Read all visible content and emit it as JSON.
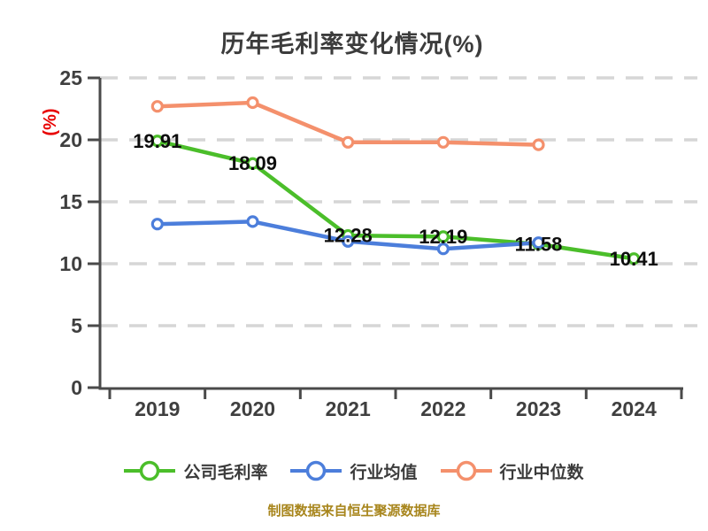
{
  "title": "历年毛利率变化情况(%)",
  "footer": "制图数据来自恒生聚源数据库",
  "colors": {
    "background": "#FFFFFF",
    "title_text": "#3C3C3C",
    "axis_text": "#3F3F3F",
    "axis_line": "#4A4A4A",
    "grid_line": "#D6D6D6",
    "y_axis_label": "#E80000",
    "data_label": "#0D0D0D",
    "footer_text": "#A8861D",
    "legend_text": "#3B3B3B"
  },
  "chart_data": {
    "type": "line",
    "title": "历年毛利率变化情况(%)",
    "ylabel": "(%)",
    "xlabel": "",
    "categories": [
      "2019",
      "2020",
      "2021",
      "2022",
      "2023",
      "2024"
    ],
    "ylim": [
      0,
      25
    ],
    "y_ticks": [
      0,
      5,
      10,
      15,
      20,
      25
    ],
    "grid": "horizontal-dashed",
    "legend_position": "bottom",
    "marker_style": "hollow-circle",
    "series": [
      {
        "name": "公司毛利率",
        "color": "#4BBE2A",
        "values": [
          19.91,
          18.09,
          12.28,
          12.19,
          11.58,
          10.41
        ],
        "data_labels": [
          "19.91",
          "18.09",
          "12.28",
          "12.19",
          "11.58",
          "10.41"
        ]
      },
      {
        "name": "行业均值",
        "color": "#4C7EDB",
        "values": [
          13.2,
          13.4,
          11.8,
          11.2,
          11.7,
          null
        ],
        "data_labels": null
      },
      {
        "name": "行业中位数",
        "color": "#F4906C",
        "values": [
          22.7,
          23.0,
          19.8,
          19.8,
          19.6,
          null
        ],
        "data_labels": null
      }
    ],
    "footer": "制图数据来自恒生聚源数据库"
  }
}
